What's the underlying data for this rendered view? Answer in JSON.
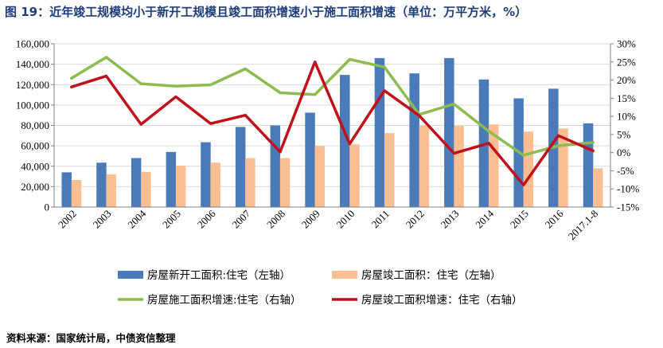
{
  "header": {
    "title": "图 19：近年竣工规模均小于新开工规模且竣工面积增速小于施工面积增速（单位：万平方米，%）"
  },
  "footer": {
    "source": "资料来源：国家统计局，中债资信整理"
  },
  "colors": {
    "new_start": "#4a7ab8",
    "completed": "#f9bf93",
    "construction_growth": "#8dbb4f",
    "completed_growth": "#c0111b",
    "grid": "#d9d9d9",
    "axis": "#808080"
  },
  "chart_data": {
    "type": "bar+line",
    "categories": [
      "2002",
      "2003",
      "2004",
      "2005",
      "2006",
      "2007",
      "2008",
      "2009",
      "2010",
      "2011",
      "2012",
      "2013",
      "2014",
      "2015",
      "2016",
      "2017.1-8"
    ],
    "left_axis": {
      "min": 0,
      "max": 160000,
      "step": 20000,
      "tick_labels": [
        "0",
        "20,000",
        "40,000",
        "60,000",
        "80,000",
        "100,000",
        "120,000",
        "140,000",
        "160,000"
      ]
    },
    "right_axis": {
      "min": -15,
      "max": 30,
      "step": 5,
      "tick_labels": [
        "-15%",
        "-10%",
        "-5%",
        "0%",
        "5%",
        "10%",
        "15%",
        "20%",
        "25%",
        "30%"
      ]
    },
    "series": [
      {
        "name": "房屋新开工面积:住宅（左轴）",
        "type": "bar",
        "axis": "left",
        "values": [
          34000,
          43500,
          48000,
          54000,
          63500,
          78500,
          80000,
          92500,
          129500,
          146000,
          131000,
          146000,
          125000,
          106500,
          116000,
          82000
        ]
      },
      {
        "name": "房屋竣工面积：住宅（左轴）",
        "type": "bar",
        "axis": "left",
        "values": [
          26500,
          32000,
          34500,
          40500,
          43500,
          48000,
          48000,
          60000,
          61500,
          72500,
          80000,
          79500,
          81000,
          74000,
          77000,
          38000
        ]
      },
      {
        "name": "房屋施工面积增速:住宅（右轴）",
        "type": "line",
        "axis": "right",
        "values": [
          20.5,
          26.3,
          19.0,
          18.3,
          18.7,
          23.1,
          16.5,
          16.0,
          25.7,
          23.6,
          10.5,
          13.4,
          5.9,
          -0.7,
          1.9,
          2.8
        ]
      },
      {
        "name": "房屋竣工面积增速：住宅（右轴）",
        "type": "line",
        "axis": "right",
        "values": [
          18.1,
          21.1,
          7.8,
          15.4,
          8.0,
          10.3,
          0.2,
          25.0,
          2.4,
          17.1,
          10.2,
          -0.2,
          2.6,
          -8.9,
          4.7,
          0.5
        ]
      }
    ]
  }
}
